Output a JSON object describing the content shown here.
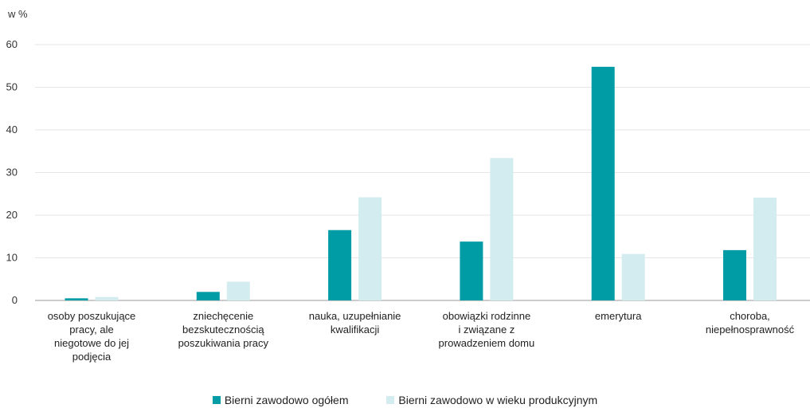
{
  "chart_data": {
    "type": "bar",
    "unit_label": "w %",
    "categories": [
      [
        "osoby poszukujące",
        "pracy, ale",
        "niegotowe do jej",
        "podjęcia"
      ],
      [
        "zniechęcenie",
        "bezskutecznością",
        "poszukiwania pracy"
      ],
      [
        "nauka, uzupełnianie",
        "kwalifikacji"
      ],
      [
        "obowiązki rodzinne",
        "i związane z",
        "prowadzeniem domu"
      ],
      [
        "emerytura"
      ],
      [
        "choroba,",
        "niepełnosprawność"
      ]
    ],
    "series": [
      {
        "name": "Bierni zawodowo ogółem",
        "color": "#009ca6",
        "values": [
          0.5,
          2.0,
          16.5,
          13.8,
          54.8,
          11.8
        ]
      },
      {
        "name": "Bierni zawodowo w wieku produkcyjnym",
        "color": "#d3ecef",
        "values": [
          0.8,
          4.4,
          24.2,
          33.4,
          10.9,
          24.1
        ]
      }
    ],
    "ylim": [
      0,
      60
    ],
    "yticks": [
      0,
      10,
      20,
      30,
      40,
      50,
      60
    ],
    "grid": true,
    "legend_position": "bottom"
  }
}
